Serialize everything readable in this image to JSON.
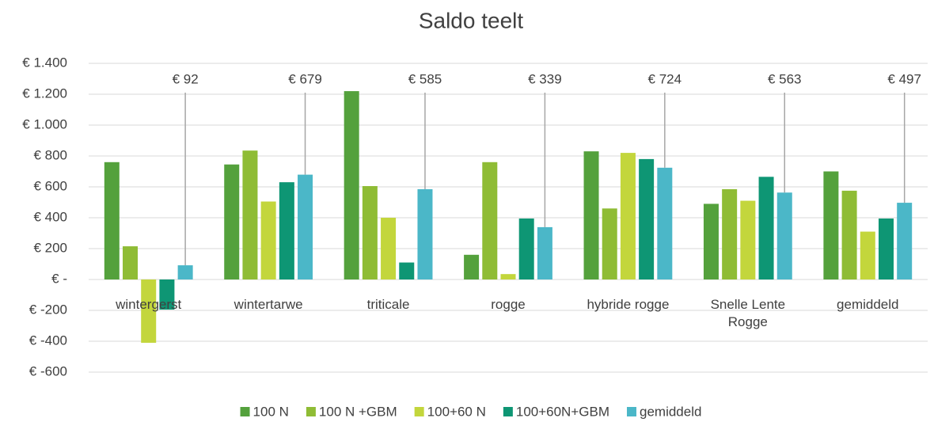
{
  "chart_data": {
    "type": "bar",
    "title": "Saldo teelt",
    "categories": [
      "wintergerst",
      "wintertarwe",
      "triticale",
      "rogge",
      "hybride rogge",
      "Snelle Lente Rogge",
      "gemiddeld"
    ],
    "series": [
      {
        "name": "100 N",
        "color": "#54a13c",
        "values": [
          760,
          745,
          1220,
          160,
          830,
          490,
          700
        ]
      },
      {
        "name": "100 N +GBM",
        "color": "#8fbc35",
        "values": [
          215,
          835,
          605,
          760,
          460,
          585,
          575
        ]
      },
      {
        "name": "100+60 N",
        "color": "#c3d63c",
        "values": [
          -410,
          505,
          400,
          35,
          820,
          510,
          310
        ]
      },
      {
        "name": "100+60N+GBM",
        "color": "#0e9674",
        "values": [
          -195,
          630,
          110,
          395,
          780,
          665,
          395
        ]
      },
      {
        "name": "gemiddeld",
        "color": "#4bb7c8",
        "values": [
          92,
          679,
          585,
          339,
          724,
          563,
          497
        ],
        "value_labels": [
          "€ 92",
          "€ 679",
          "€ 585",
          "€ 339",
          "€ 724",
          "€ 563",
          "€ 497"
        ]
      }
    ],
    "ylim": [
      -600,
      1400
    ],
    "yticks": [
      {
        "value": -600,
        "label": "€ -600"
      },
      {
        "value": -400,
        "label": "€ -400"
      },
      {
        "value": -200,
        "label": "€ -200"
      },
      {
        "value": 0,
        "label": "€ -"
      },
      {
        "value": 200,
        "label": "€ 200"
      },
      {
        "value": 400,
        "label": "€ 400"
      },
      {
        "value": 600,
        "label": "€ 600"
      },
      {
        "value": 800,
        "label": "€ 800"
      },
      {
        "value": 1000,
        "label": "€ 1.000"
      },
      {
        "value": 1200,
        "label": "€ 1.200"
      },
      {
        "value": 1400,
        "label": "€ 1.400"
      }
    ],
    "grid": true,
    "legend": "bottom"
  }
}
